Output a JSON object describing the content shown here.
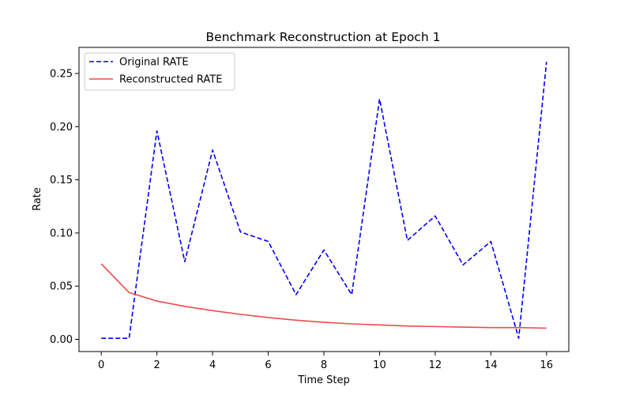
{
  "chart_data": {
    "type": "line",
    "title": "Benchmark Reconstruction at Epoch 1",
    "xlabel": "Time Step",
    "ylabel": "Rate",
    "xlim": [
      -0.8,
      16.8
    ],
    "ylim": [
      -0.0115,
      0.2745
    ],
    "xticks": [
      0,
      2,
      4,
      6,
      8,
      10,
      12,
      14,
      16
    ],
    "xtick_labels": [
      "0",
      "2",
      "4",
      "6",
      "8",
      "10",
      "12",
      "14",
      "16"
    ],
    "yticks": [
      0.0,
      0.05,
      0.1,
      0.15,
      0.2,
      0.25
    ],
    "ytick_labels": [
      "0.00",
      "0.05",
      "0.10",
      "0.15",
      "0.20",
      "0.25"
    ],
    "grid": false,
    "legend_position": "top-left",
    "x": [
      0,
      1,
      2,
      3,
      4,
      5,
      6,
      7,
      8,
      9,
      10,
      11,
      12,
      13,
      14,
      15,
      16
    ],
    "series": [
      {
        "name": "Original RATE",
        "color": "#0000ff",
        "style": "dashed",
        "values": [
          0.001,
          0.001,
          0.196,
          0.073,
          0.178,
          0.101,
          0.092,
          0.042,
          0.084,
          0.042,
          0.226,
          0.093,
          0.116,
          0.07,
          0.092,
          0.001,
          0.261
        ]
      },
      {
        "name": "Reconstructed RATE",
        "color": "#f04a4a",
        "style": "solid",
        "values": [
          0.071,
          0.044,
          0.036,
          0.031,
          0.027,
          0.0235,
          0.0205,
          0.018,
          0.016,
          0.0145,
          0.0135,
          0.0125,
          0.012,
          0.0115,
          0.011,
          0.011,
          0.0105
        ]
      }
    ]
  }
}
